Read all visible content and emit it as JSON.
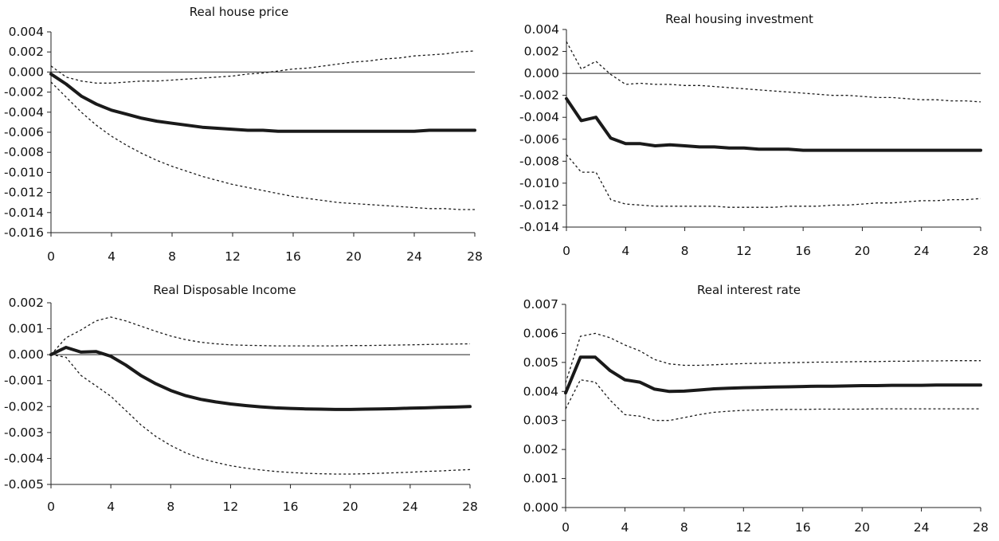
{
  "chart_data": [
    {
      "type": "line",
      "title": "Real house price",
      "xlabel": "",
      "ylabel": "",
      "xlim": [
        0,
        28
      ],
      "ylim": [
        -0.016,
        0.004
      ],
      "x_ticks": [
        0,
        4,
        8,
        12,
        16,
        20,
        24,
        28
      ],
      "x_tick_labels": [
        "0",
        "4",
        "8",
        "12",
        "16",
        "20",
        "24",
        "28"
      ],
      "y_ticks": [
        0.004,
        0.002,
        0.0,
        -0.002,
        -0.004,
        -0.006,
        -0.008,
        -0.01,
        -0.012,
        -0.014,
        -0.016
      ],
      "y_tick_labels": [
        "0.004",
        "0.002",
        "0.000",
        "-0.002",
        "-0.004",
        "-0.006",
        "-0.008",
        "-0.010",
        "-0.012",
        "-0.014",
        "-0.016"
      ],
      "grid": false,
      "x": [
        0,
        1,
        2,
        3,
        4,
        5,
        6,
        7,
        8,
        9,
        10,
        11,
        12,
        13,
        14,
        15,
        16,
        17,
        18,
        19,
        20,
        21,
        22,
        23,
        24,
        25,
        26,
        27,
        28
      ],
      "series": [
        {
          "role": "response",
          "values": [
            -0.0002,
            -0.0012,
            -0.0024,
            -0.0032,
            -0.0038,
            -0.0042,
            -0.0046,
            -0.0049,
            -0.0051,
            -0.0053,
            -0.0055,
            -0.0056,
            -0.0057,
            -0.0058,
            -0.0058,
            -0.0059,
            -0.0059,
            -0.0059,
            -0.0059,
            -0.0059,
            -0.0059,
            -0.0059,
            -0.0059,
            -0.0059,
            -0.0059,
            -0.0058,
            -0.0058,
            -0.0058,
            -0.0058
          ]
        },
        {
          "role": "upper",
          "values": [
            0.0006,
            -0.0005,
            -0.0009,
            -0.0011,
            -0.0011,
            -0.001,
            -0.0009,
            -0.0009,
            -0.0008,
            -0.0007,
            -0.0006,
            -0.0005,
            -0.0004,
            -0.0002,
            -0.0001,
            0.0001,
            0.0003,
            0.0004,
            0.0006,
            0.0008,
            0.001,
            0.0011,
            0.0013,
            0.0014,
            0.0016,
            0.0017,
            0.0018,
            0.002,
            0.0021
          ]
        },
        {
          "role": "lower",
          "values": [
            -0.001,
            -0.0025,
            -0.004,
            -0.0053,
            -0.0064,
            -0.0073,
            -0.0081,
            -0.0088,
            -0.0094,
            -0.0099,
            -0.0104,
            -0.0108,
            -0.0112,
            -0.0115,
            -0.0118,
            -0.0121,
            -0.0124,
            -0.0126,
            -0.0128,
            -0.013,
            -0.0131,
            -0.0132,
            -0.0133,
            -0.0134,
            -0.0135,
            -0.0136,
            -0.0136,
            -0.0137,
            -0.0137
          ]
        }
      ]
    },
    {
      "type": "line",
      "title": "Real housing investment",
      "xlabel": "",
      "ylabel": "",
      "xlim": [
        0,
        28
      ],
      "ylim": [
        -0.014,
        0.004
      ],
      "x_ticks": [
        0,
        4,
        8,
        12,
        16,
        20,
        24,
        28
      ],
      "x_tick_labels": [
        "0",
        "4",
        "8",
        "12",
        "16",
        "20",
        "24",
        "28"
      ],
      "y_ticks": [
        0.004,
        0.002,
        0.0,
        -0.002,
        -0.004,
        -0.006,
        -0.008,
        -0.01,
        -0.012,
        -0.014
      ],
      "y_tick_labels": [
        "0.004",
        "0.002",
        "0.000",
        "-0.002",
        "-0.004",
        "-0.006",
        "-0.008",
        "-0.010",
        "-0.012",
        "-0.014"
      ],
      "grid": false,
      "x": [
        0,
        1,
        2,
        3,
        4,
        5,
        6,
        7,
        8,
        9,
        10,
        11,
        12,
        13,
        14,
        15,
        16,
        17,
        18,
        19,
        20,
        21,
        22,
        23,
        24,
        25,
        26,
        27,
        28
      ],
      "series": [
        {
          "role": "response",
          "values": [
            -0.0023,
            -0.0043,
            -0.004,
            -0.0059,
            -0.0064,
            -0.0064,
            -0.0066,
            -0.0065,
            -0.0066,
            -0.0067,
            -0.0067,
            -0.0068,
            -0.0068,
            -0.0069,
            -0.0069,
            -0.0069,
            -0.007,
            -0.007,
            -0.007,
            -0.007,
            -0.007,
            -0.007,
            -0.007,
            -0.007,
            -0.007,
            -0.007,
            -0.007,
            -0.007,
            -0.007
          ]
        },
        {
          "role": "upper",
          "values": [
            0.0029,
            0.0004,
            0.0011,
            -0.0001,
            -0.001,
            -0.0009,
            -0.001,
            -0.001,
            -0.0011,
            -0.0011,
            -0.0012,
            -0.0013,
            -0.0014,
            -0.0015,
            -0.0016,
            -0.0017,
            -0.0018,
            -0.0019,
            -0.002,
            -0.002,
            -0.0021,
            -0.0022,
            -0.0022,
            -0.0023,
            -0.0024,
            -0.0024,
            -0.0025,
            -0.0025,
            -0.0026
          ]
        },
        {
          "role": "lower",
          "values": [
            -0.0074,
            -0.009,
            -0.009,
            -0.0115,
            -0.0119,
            -0.012,
            -0.0121,
            -0.0121,
            -0.0121,
            -0.0121,
            -0.0121,
            -0.0122,
            -0.0122,
            -0.0122,
            -0.0122,
            -0.0121,
            -0.0121,
            -0.0121,
            -0.012,
            -0.012,
            -0.0119,
            -0.0118,
            -0.0118,
            -0.0117,
            -0.0116,
            -0.0116,
            -0.0115,
            -0.0115,
            -0.0114
          ]
        }
      ]
    },
    {
      "type": "line",
      "title": "Real Disposable Income",
      "xlabel": "",
      "ylabel": "",
      "xlim": [
        0,
        28
      ],
      "ylim": [
        -0.005,
        0.002
      ],
      "x_ticks": [
        0,
        4,
        8,
        12,
        16,
        20,
        24,
        28
      ],
      "x_tick_labels": [
        "0",
        "4",
        "8",
        "12",
        "16",
        "20",
        "24",
        "28"
      ],
      "y_ticks": [
        0.002,
        0.001,
        0.0,
        -0.001,
        -0.002,
        -0.003,
        -0.004,
        -0.005
      ],
      "y_tick_labels": [
        "0.002",
        "0.001",
        "0.000",
        "-0.001",
        "-0.002",
        "-0.003",
        "-0.004",
        "-0.005"
      ],
      "grid": false,
      "x": [
        0,
        1,
        2,
        3,
        4,
        5,
        6,
        7,
        8,
        9,
        10,
        11,
        12,
        13,
        14,
        15,
        16,
        17,
        18,
        19,
        20,
        21,
        22,
        23,
        24,
        25,
        26,
        27,
        28
      ],
      "series": [
        {
          "role": "response",
          "values": [
            0.0,
            0.00028,
            0.0001,
            0.00012,
            -6e-05,
            -0.0004,
            -0.0008,
            -0.00112,
            -0.00138,
            -0.00158,
            -0.00172,
            -0.00182,
            -0.0019,
            -0.00196,
            -0.00201,
            -0.00205,
            -0.00207,
            -0.00209,
            -0.0021,
            -0.00211,
            -0.00211,
            -0.0021,
            -0.00209,
            -0.00208,
            -0.00206,
            -0.00205,
            -0.00203,
            -0.00202,
            -0.002
          ]
        },
        {
          "role": "upper",
          "values": [
            0.0,
            0.00065,
            0.00095,
            0.0013,
            0.00145,
            0.0013,
            0.0011,
            0.0009,
            0.00072,
            0.00058,
            0.00048,
            0.00042,
            0.00038,
            0.00036,
            0.00035,
            0.00034,
            0.00034,
            0.00034,
            0.00034,
            0.00034,
            0.00035,
            0.00035,
            0.00036,
            0.00037,
            0.00038,
            0.00039,
            0.0004,
            0.00041,
            0.00042
          ]
        },
        {
          "role": "lower",
          "values": [
            0.0,
            -0.0001,
            -0.0008,
            -0.0012,
            -0.0016,
            -0.00215,
            -0.0027,
            -0.00315,
            -0.0035,
            -0.00378,
            -0.004,
            -0.00415,
            -0.00428,
            -0.00437,
            -0.00444,
            -0.0045,
            -0.00454,
            -0.00457,
            -0.00459,
            -0.0046,
            -0.0046,
            -0.00459,
            -0.00457,
            -0.00455,
            -0.00453,
            -0.0045,
            -0.00448,
            -0.00445,
            -0.00443
          ]
        }
      ]
    },
    {
      "type": "line",
      "title": "Real interest rate",
      "xlabel": "",
      "ylabel": "",
      "xlim": [
        0,
        28
      ],
      "ylim": [
        0.0,
        0.007
      ],
      "x_ticks": [
        0,
        4,
        8,
        12,
        16,
        20,
        24,
        28
      ],
      "x_tick_labels": [
        "0",
        "4",
        "8",
        "12",
        "16",
        "20",
        "24",
        "28"
      ],
      "y_ticks": [
        0.007,
        0.006,
        0.005,
        0.004,
        0.003,
        0.002,
        0.001,
        0.0
      ],
      "y_tick_labels": [
        "0.007",
        "0.006",
        "0.005",
        "0.004",
        "0.003",
        "0.002",
        "0.001",
        "0.000"
      ],
      "grid": false,
      "x": [
        0,
        1,
        2,
        3,
        4,
        5,
        6,
        7,
        8,
        9,
        10,
        11,
        12,
        13,
        14,
        15,
        16,
        17,
        18,
        19,
        20,
        21,
        22,
        23,
        24,
        25,
        26,
        27,
        28
      ],
      "series": [
        {
          "role": "response",
          "values": [
            0.00395,
            0.00518,
            0.00518,
            0.00472,
            0.0044,
            0.00432,
            0.00408,
            0.004,
            0.00401,
            0.00405,
            0.00409,
            0.00411,
            0.00413,
            0.00414,
            0.00415,
            0.00416,
            0.00417,
            0.00418,
            0.00418,
            0.00419,
            0.0042,
            0.0042,
            0.00421,
            0.00421,
            0.00421,
            0.00422,
            0.00422,
            0.00422,
            0.00422
          ]
        },
        {
          "role": "upper",
          "values": [
            0.0043,
            0.0059,
            0.006,
            0.00585,
            0.0056,
            0.0054,
            0.0051,
            0.00495,
            0.0049,
            0.0049,
            0.00492,
            0.00494,
            0.00496,
            0.00497,
            0.00498,
            0.00499,
            0.005,
            0.00501,
            0.00501,
            0.00502,
            0.00503,
            0.00503,
            0.00504,
            0.00504,
            0.00505,
            0.00505,
            0.00506,
            0.00506,
            0.00506
          ]
        },
        {
          "role": "lower",
          "values": [
            0.0034,
            0.0044,
            0.00432,
            0.0037,
            0.0032,
            0.00315,
            0.003,
            0.003,
            0.0031,
            0.0032,
            0.00328,
            0.00332,
            0.00335,
            0.00336,
            0.00337,
            0.00338,
            0.00338,
            0.00339,
            0.00339,
            0.00339,
            0.00339,
            0.0034,
            0.0034,
            0.0034,
            0.0034,
            0.0034,
            0.0034,
            0.0034,
            0.0034
          ]
        }
      ]
    }
  ]
}
